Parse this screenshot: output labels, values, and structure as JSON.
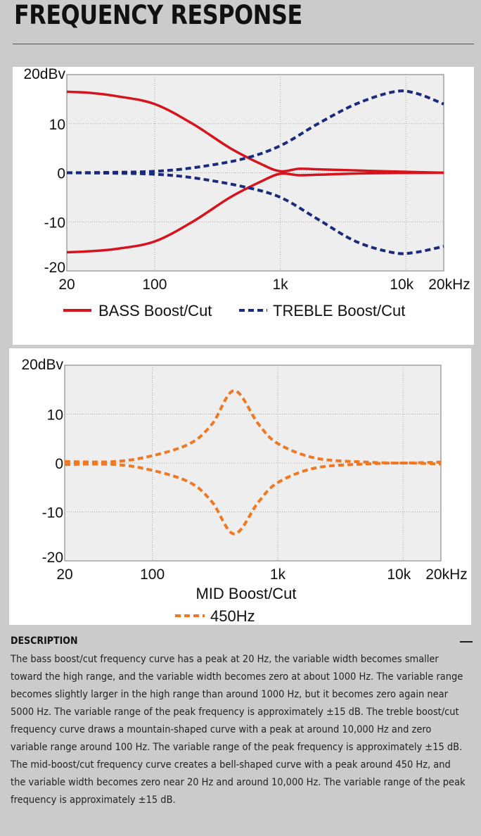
{
  "page": {
    "title": "FREQUENCY RESPONSE"
  },
  "description": {
    "heading": "DESCRIPTION",
    "toggle": "—",
    "text": "The bass boost/cut frequency curve has a peak at 20 Hz, the variable width becomes smaller toward the high range, and the variable width becomes zero at about 1000 Hz. The variable range becomes slightly larger in the high range than around 1000 Hz, but it becomes zero again near 5000 Hz. The variable range of the peak frequency is approximately ±15 dB. The treble boost/cut frequency curve draws a mountain-shaped curve with a peak at around 10,000 Hz and zero variable range around 100 Hz. The variable range of the peak frequency is approximately ±15 dB. The mid-boost/cut frequency curve creates a bell-shaped curve with a peak around 450 Hz, and the variable width becomes zero near 20 Hz and around 10,000 Hz. The variable range of the peak frequency is approximately ±15 dB."
  },
  "chart_data": [
    {
      "type": "line",
      "title": "",
      "xscale": "log",
      "xlim": [
        20,
        20000
      ],
      "ylim": [
        -20,
        20
      ],
      "xticks": [
        20,
        100,
        1000,
        10000,
        20000
      ],
      "xtick_labels": [
        "20",
        "100",
        "1k",
        "10k",
        "20kHz"
      ],
      "yticks": [
        20,
        10,
        0,
        -10,
        -20
      ],
      "ytick_labels": [
        "20dBv",
        "10",
        "0",
        "-10",
        "-20"
      ],
      "grid": true,
      "legend": [
        "BASS Boost/Cut",
        "TREBLE Boost/Cut"
      ],
      "legend_position": "bottom",
      "series": [
        {
          "name": "BASS Boost/Cut",
          "part": "boost",
          "color": "#d7141e",
          "style": "solid",
          "x": [
            20,
            30,
            50,
            100,
            200,
            400,
            700,
            1000,
            1400,
            2000,
            5000,
            20000
          ],
          "y": [
            16.5,
            16.3,
            15.6,
            14,
            10,
            5,
            1.8,
            0.3,
            0.8,
            0.7,
            0.4,
            0
          ]
        },
        {
          "name": "BASS Boost/Cut",
          "part": "cut",
          "color": "#d7141e",
          "style": "solid",
          "x": [
            20,
            30,
            50,
            100,
            200,
            400,
            700,
            1000,
            1400,
            2000,
            5000,
            20000
          ],
          "y": [
            -16.2,
            -16,
            -15.5,
            -14,
            -10,
            -5,
            -1.8,
            -0.2,
            -0.5,
            -0.4,
            -0.1,
            0
          ]
        },
        {
          "name": "TREBLE Boost/Cut",
          "part": "boost",
          "color": "#1a2a7c",
          "style": "dashed",
          "x": [
            20,
            50,
            100,
            200,
            500,
            1000,
            2000,
            4000,
            8000,
            12000,
            20000
          ],
          "y": [
            0,
            0.1,
            0.3,
            1,
            2.8,
            5.5,
            10,
            14,
            16.5,
            16.2,
            14
          ]
        },
        {
          "name": "TREBLE Boost/Cut",
          "part": "cut",
          "color": "#1a2a7c",
          "style": "dashed",
          "x": [
            20,
            50,
            100,
            200,
            500,
            1000,
            2000,
            4000,
            8000,
            12000,
            20000
          ],
          "y": [
            0,
            -0.1,
            -0.3,
            -1,
            -2.8,
            -5,
            -9.5,
            -14,
            -16.3,
            -16.2,
            -15
          ]
        }
      ]
    },
    {
      "type": "line",
      "title": "MID Boost/Cut",
      "xscale": "log",
      "xlim": [
        20,
        20000
      ],
      "ylim": [
        -20,
        20
      ],
      "xticks": [
        20,
        100,
        1000,
        10000,
        20000
      ],
      "xtick_labels": [
        "20",
        "100",
        "1k",
        "10k",
        "20kHz"
      ],
      "yticks": [
        20,
        10,
        0,
        -10,
        -20
      ],
      "ytick_labels": [
        "20dBv",
        "10",
        "0",
        "-10",
        "-20"
      ],
      "grid": true,
      "legend": [
        "450Hz"
      ],
      "legend_position": "bottom",
      "series": [
        {
          "name": "450Hz",
          "part": "boost",
          "color": "#f07822",
          "style": "dashed",
          "x": [
            20,
            50,
            100,
            200,
            300,
            450,
            700,
            1000,
            2000,
            5000,
            10000,
            20000
          ],
          "y": [
            0.3,
            0.3,
            1.5,
            4,
            8,
            14.8,
            8,
            4,
            1,
            0.2,
            0,
            0.2
          ]
        },
        {
          "name": "450Hz",
          "part": "cut",
          "color": "#f07822",
          "style": "dashed",
          "x": [
            20,
            50,
            100,
            200,
            300,
            450,
            700,
            1000,
            2000,
            5000,
            10000,
            20000
          ],
          "y": [
            -0.3,
            -0.3,
            -1.5,
            -4,
            -8,
            -14.5,
            -8,
            -4,
            -1,
            -0.2,
            0,
            -0.2
          ]
        }
      ]
    }
  ]
}
